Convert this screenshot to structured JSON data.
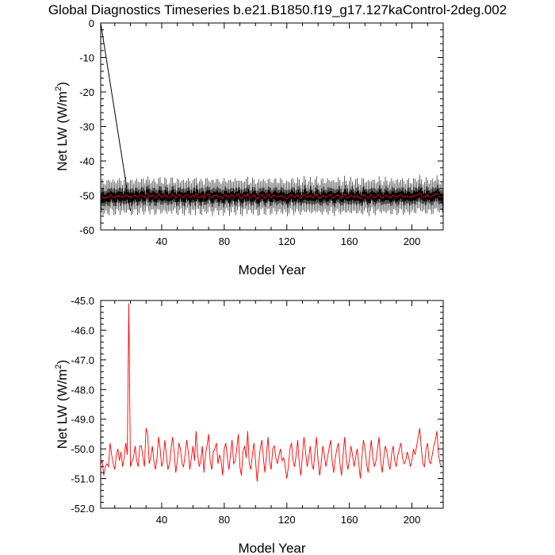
{
  "title": "Global Diagnostics Timeseries b.e21.B1850.f19_g17.127kaControl-2deg.002",
  "chart_data": [
    {
      "type": "line",
      "xlabel": "Model Year",
      "ylabel_main": "Net LW (W/m",
      "ylabel_sup": "2",
      "ylabel_close": ")",
      "xlim": [
        1,
        220
      ],
      "ylim": [
        -60,
        0
      ],
      "xticks": [
        40,
        80,
        120,
        160,
        200
      ],
      "yticks": [
        0,
        -10,
        -20,
        -30,
        -40,
        -50,
        -60
      ],
      "ytick_labels": [
        "0",
        "-10",
        "-20",
        "-30",
        "-40",
        "-50",
        "-60"
      ],
      "series": [
        {
          "color": "#000000",
          "description_values": "monthly values oscillating approximately between -55 and -44 W/m2 over years 1-220; initial spin-up drop from 0 at year 1 to about -54 at year 20",
          "spinup_x": [
            1,
            20
          ],
          "spinup_y": [
            0,
            -54.5
          ],
          "monthly_center": -50.3,
          "monthly_amplitude": 5.3
        },
        {
          "color": "#ff0000",
          "note_ref": "annual"
        }
      ]
    },
    {
      "type": "line",
      "xlabel": "Model Year",
      "ylabel_main": "Net LW (W/m",
      "ylabel_sup": "2",
      "ylabel_close": ")",
      "xlim": [
        1,
        220
      ],
      "ylim": [
        -52,
        -45
      ],
      "xticks": [
        40,
        80,
        120,
        160,
        200
      ],
      "yticks": [
        -45,
        -46,
        -47,
        -48,
        -49,
        -50,
        -51,
        -52
      ],
      "ytick_labels": [
        "-45.0",
        "-46.0",
        "-47.0",
        "-48.0",
        "-49.0",
        "-50.0",
        "-51.0",
        "-52.0"
      ],
      "series": [
        {
          "color": "#ff0000",
          "x_start": 1,
          "values": [
            -50.5,
            -50.4,
            -50.9,
            -50.6,
            -50.5,
            -50.6,
            -49.8,
            -50.2,
            -50.5,
            -50.7,
            -50.2,
            -50.0,
            -50.4,
            -50.1,
            -50.6,
            -50.3,
            -49.8,
            -50.2,
            -45.1,
            -50.6,
            -50.4,
            -50.3,
            -49.9,
            -50.4,
            -50.6,
            -49.9,
            -49.9,
            -50.3,
            -50.6,
            -49.3,
            -49.5,
            -50.5,
            -50.3,
            -49.9,
            -50.4,
            -50.7,
            -50.3,
            -49.6,
            -50.0,
            -50.6,
            -50.4,
            -49.7,
            -50.2,
            -50.7,
            -50.5,
            -50.0,
            -49.6,
            -50.1,
            -50.8,
            -50.4,
            -49.8,
            -50.0,
            -50.5,
            -50.6,
            -50.2,
            -49.7,
            -50.1,
            -50.7,
            -50.3,
            -49.9,
            -50.4,
            -49.4,
            -50.2,
            -50.6,
            -50.4,
            -49.9,
            -50.8,
            -50.2,
            -49.9,
            -49.5,
            -50.4,
            -50.7,
            -50.1,
            -50.0,
            -49.8,
            -50.5,
            -50.2,
            -50.4,
            -50.9,
            -50.0,
            -49.8,
            -50.3,
            -50.7,
            -50.2,
            -49.7,
            -50.5,
            -50.4,
            -50.0,
            -49.5,
            -50.6,
            -50.9,
            -50.1,
            -49.9,
            -50.3,
            -49.4,
            -50.5,
            -50.7,
            -50.2,
            -49.8,
            -50.4,
            -51.1,
            -50.5,
            -50.0,
            -49.7,
            -50.3,
            -50.8,
            -50.2,
            -49.6,
            -50.4,
            -50.7,
            -50.0,
            -49.9,
            -50.3,
            -50.5,
            -50.2,
            -50.0,
            -50.4,
            -50.3,
            -50.6,
            -51.0,
            -50.6,
            -50.0,
            -49.8,
            -50.4,
            -50.6,
            -50.2,
            -49.7,
            -50.5,
            -50.9,
            -50.2,
            -49.6,
            -50.1,
            -50.6,
            -50.3,
            -49.9,
            -50.5,
            -50.7,
            -50.1,
            -49.6,
            -50.4,
            -50.9,
            -50.5,
            -49.9,
            -50.2,
            -50.6,
            -50.3,
            -50.0,
            -49.7,
            -50.4,
            -50.8,
            -50.3,
            -50.0,
            -49.8,
            -50.5,
            -50.9,
            -50.2,
            -49.6,
            -50.3,
            -50.7,
            -50.4,
            -49.9,
            -50.2,
            -50.6,
            -50.3,
            -50.0,
            -50.5,
            -51.0,
            -50.3,
            -49.7,
            -50.0,
            -50.5,
            -50.8,
            -50.2,
            -49.7,
            -50.3,
            -50.6,
            -50.4,
            -50.0,
            -49.6,
            -50.4,
            -50.8,
            -50.3,
            -49.9,
            -50.1,
            -50.5,
            -50.7,
            -50.2,
            -49.9,
            -50.4,
            -50.6,
            -50.2,
            -50.0,
            -49.8,
            -50.3,
            -50.5,
            -50.4,
            -50.1,
            -50.3,
            -50.6,
            -50.4,
            -50.0,
            -50.2,
            -49.9,
            -49.6,
            -49.3,
            -50.0,
            -50.5,
            -50.6,
            -50.0,
            -49.8,
            -50.4,
            -50.5,
            -50.2,
            -49.9,
            -49.7,
            -49.4,
            -50.2,
            -50.5,
            -50.6
          ]
        }
      ]
    }
  ]
}
